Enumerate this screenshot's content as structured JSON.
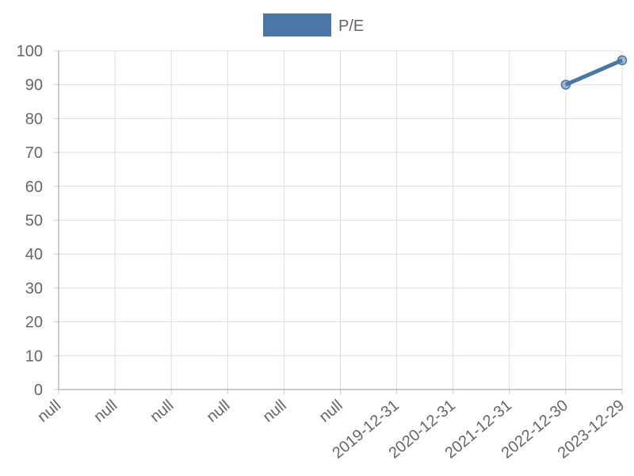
{
  "chart_data": {
    "type": "line",
    "categories": [
      "null",
      "null",
      "null",
      "null",
      "null",
      "null",
      "2019-12-31",
      "2020-12-31",
      "2021-12-31",
      "2022-12-30",
      "2023-12-29"
    ],
    "series": [
      {
        "name": "P/E",
        "color": "#4a76a8",
        "values": [
          null,
          null,
          null,
          null,
          null,
          null,
          null,
          null,
          null,
          90,
          97.2
        ]
      }
    ],
    "ylim": [
      0,
      100
    ],
    "yticks": [
      0,
      10,
      20,
      30,
      40,
      50,
      60,
      70,
      80,
      90,
      100
    ],
    "grid": true,
    "legend": "top"
  }
}
